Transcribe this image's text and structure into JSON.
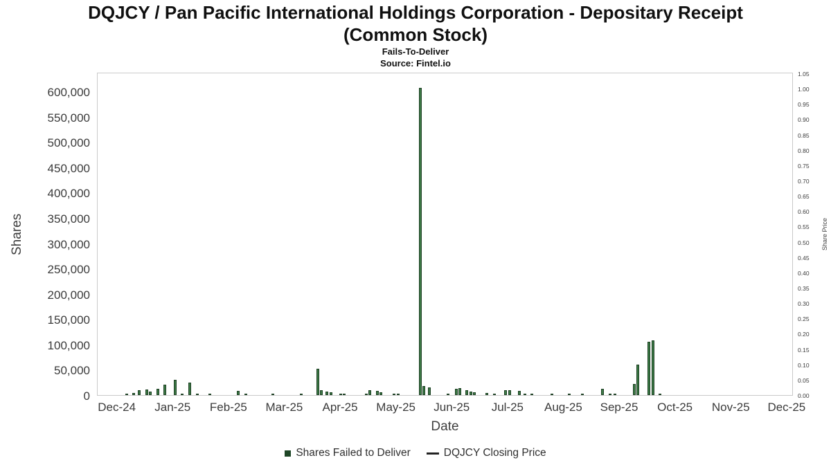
{
  "title": {
    "line1": "DQJCY / Pan Pacific International Holdings Corporation - Depositary Receipt",
    "line2": "(Common Stock)"
  },
  "subtitle": "Fails-To-Deliver",
  "source": "Source: Fintel.io",
  "chart_data": {
    "type": "bar",
    "title": "DQJCY / Pan Pacific International Holdings Corporation - Depositary Receipt (Common Stock)",
    "xlabel": "Date",
    "ylabel_left": "Shares",
    "ylabel_right": "Share Price",
    "bar_color": "#3c7a46",
    "bar_edge_color": "#1d4023",
    "grid": false,
    "legend_position": "bottom-center",
    "x_ticks": [
      "Dec-24",
      "Jan-25",
      "Feb-25",
      "Mar-25",
      "Apr-25",
      "May-25",
      "Jun-25",
      "Jul-25",
      "Aug-25",
      "Sep-25",
      "Oct-25",
      "Nov-25",
      "Dec-25"
    ],
    "y_left": {
      "min": 0,
      "max": 600000,
      "step": 50000
    },
    "y_right": {
      "min": 0.0,
      "max": 1.05,
      "step": 0.05
    },
    "legend": [
      {
        "label": "Shares Failed to Deliver",
        "type": "bar",
        "color": "#1e4626"
      },
      {
        "label": "DQJCY Closing Price",
        "type": "line",
        "color": "#222222"
      }
    ],
    "price_line": [],
    "bars": [
      {
        "date": "2024-12-06",
        "shares": 2500
      },
      {
        "date": "2024-12-10",
        "shares": 4000
      },
      {
        "date": "2024-12-13",
        "shares": 9000
      },
      {
        "date": "2024-12-17",
        "shares": 10500
      },
      {
        "date": "2024-12-19",
        "shares": 6500
      },
      {
        "date": "2024-12-23",
        "shares": 12000
      },
      {
        "date": "2024-12-27",
        "shares": 20000
      },
      {
        "date": "2025-01-02",
        "shares": 30000
      },
      {
        "date": "2025-01-06",
        "shares": 2000
      },
      {
        "date": "2025-01-10",
        "shares": 24000
      },
      {
        "date": "2025-01-14",
        "shares": 2500
      },
      {
        "date": "2025-01-21",
        "shares": 2000
      },
      {
        "date": "2025-02-06",
        "shares": 8000
      },
      {
        "date": "2025-02-10",
        "shares": 2000
      },
      {
        "date": "2025-02-25",
        "shares": 1500
      },
      {
        "date": "2025-03-10",
        "shares": 1200
      },
      {
        "date": "2025-03-19",
        "shares": 52500
      },
      {
        "date": "2025-03-21",
        "shares": 10000
      },
      {
        "date": "2025-03-24",
        "shares": 7500
      },
      {
        "date": "2025-03-26",
        "shares": 6000
      },
      {
        "date": "2025-04-01",
        "shares": 3000
      },
      {
        "date": "2025-04-03",
        "shares": 2500
      },
      {
        "date": "2025-04-15",
        "shares": 2000
      },
      {
        "date": "2025-04-17",
        "shares": 9500
      },
      {
        "date": "2025-04-21",
        "shares": 8000
      },
      {
        "date": "2025-04-23",
        "shares": 5000
      },
      {
        "date": "2025-04-30",
        "shares": 2000
      },
      {
        "date": "2025-05-02",
        "shares": 1500
      },
      {
        "date": "2025-05-14",
        "shares": 607000
      },
      {
        "date": "2025-05-16",
        "shares": 18000
      },
      {
        "date": "2025-05-19",
        "shares": 15000
      },
      {
        "date": "2025-05-29",
        "shares": 2000
      },
      {
        "date": "2025-06-03",
        "shares": 12000
      },
      {
        "date": "2025-06-05",
        "shares": 13500
      },
      {
        "date": "2025-06-09",
        "shares": 10000
      },
      {
        "date": "2025-06-11",
        "shares": 7500
      },
      {
        "date": "2025-06-13",
        "shares": 5000
      },
      {
        "date": "2025-06-20",
        "shares": 4000
      },
      {
        "date": "2025-06-24",
        "shares": 3000
      },
      {
        "date": "2025-06-30",
        "shares": 10000
      },
      {
        "date": "2025-07-02",
        "shares": 9500
      },
      {
        "date": "2025-07-07",
        "shares": 8000
      },
      {
        "date": "2025-07-10",
        "shares": 2000
      },
      {
        "date": "2025-07-14",
        "shares": 1500
      },
      {
        "date": "2025-07-25",
        "shares": 1000
      },
      {
        "date": "2025-08-04",
        "shares": 1500
      },
      {
        "date": "2025-08-11",
        "shares": 1000
      },
      {
        "date": "2025-08-22",
        "shares": 13000
      },
      {
        "date": "2025-08-26",
        "shares": 2500
      },
      {
        "date": "2025-08-29",
        "shares": 1200
      },
      {
        "date": "2025-09-09",
        "shares": 22000
      },
      {
        "date": "2025-09-11",
        "shares": 60000
      },
      {
        "date": "2025-09-17",
        "shares": 105000
      },
      {
        "date": "2025-09-19",
        "shares": 108000
      },
      {
        "date": "2025-09-23",
        "shares": 1500
      }
    ]
  }
}
